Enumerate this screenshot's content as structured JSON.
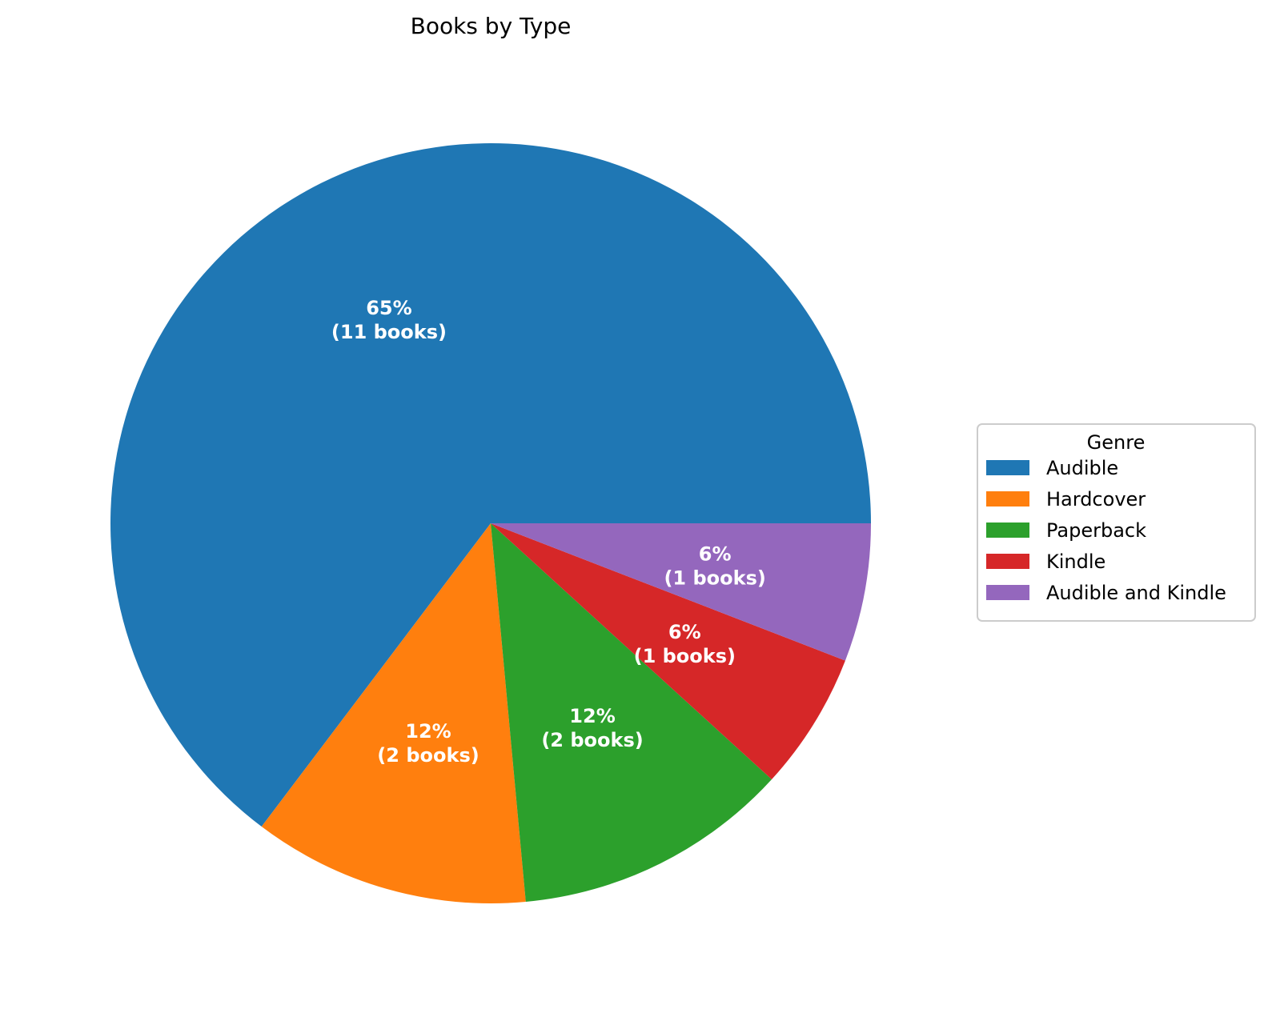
{
  "chart_data": {
    "type": "pie",
    "title": "Books by Type",
    "categories": [
      "Audible",
      "Hardcover",
      "Paperback",
      "Kindle",
      "Audible and Kindle"
    ],
    "values": [
      11,
      2,
      2,
      1,
      1
    ],
    "slice_labels": [
      {
        "pct": "65%",
        "count": "(11 books)"
      },
      {
        "pct": "12%",
        "count": "(2 books)"
      },
      {
        "pct": "12%",
        "count": "(2 books)"
      },
      {
        "pct": "6%",
        "count": "(1 books)"
      },
      {
        "pct": "6%",
        "count": "(1 books)"
      }
    ],
    "colors": [
      "#1f77b4",
      "#ff7f0e",
      "#2ca02c",
      "#d62728",
      "#9467bd"
    ],
    "start_angle_deg": 0,
    "direction": "counterclockwise",
    "legend": {
      "title": "Genre",
      "placement": "center-right"
    }
  }
}
